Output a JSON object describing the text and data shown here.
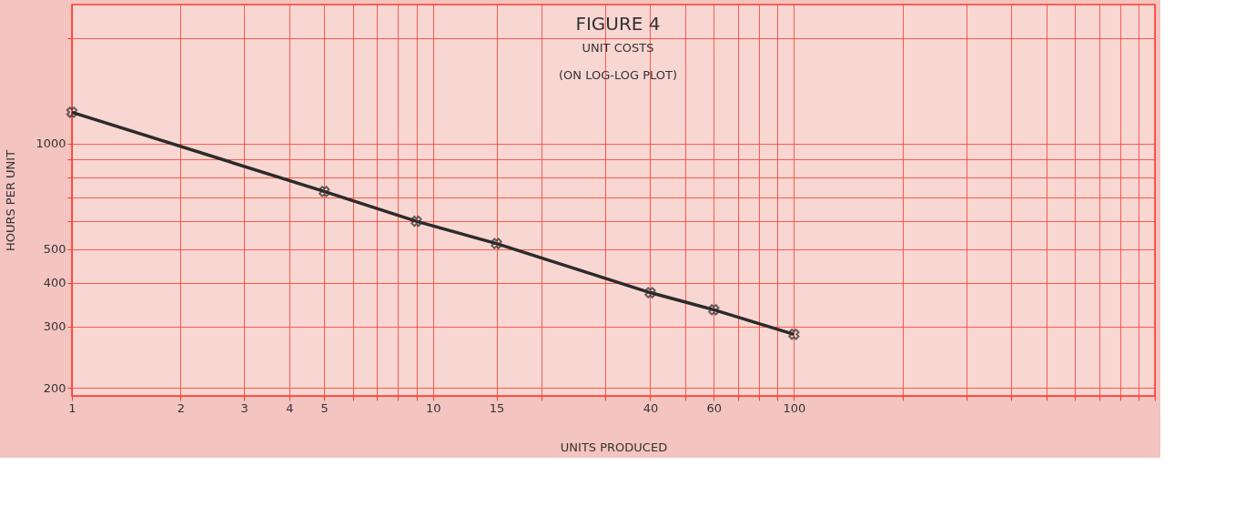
{
  "chart_data": {
    "type": "line",
    "title": "FIGURE 4",
    "subtitle": "UNIT COSTS",
    "annotations": [
      "(ON LOG-LOG PLOT)"
    ],
    "xlabel": "UNITS PRODUCED",
    "ylabel": "HOURS PER UNIT",
    "x": [
      1,
      5,
      9,
      15,
      40,
      60,
      100
    ],
    "series": [
      {
        "color": "#2b2b2b",
        "values": [
          1230,
          730,
          600,
          518,
          375,
          335,
          285
        ]
      }
    ],
    "log": "xy",
    "marker": "cross",
    "line_style": "solid",
    "grid": true,
    "xlim": [
      1,
      1000
    ],
    "ylim": [
      190,
      2500
    ],
    "xticks": [
      1,
      2,
      3,
      4,
      5,
      {
        "value": 6,
        "label": null
      },
      {
        "value": 7,
        "label": null
      },
      {
        "value": 8,
        "label": null
      },
      {
        "value": 9,
        "label": null
      },
      10,
      15,
      {
        "value": 20,
        "label": null
      },
      {
        "value": 30,
        "label": null
      },
      40,
      {
        "value": 50,
        "label": null
      },
      60,
      {
        "value": 70,
        "label": null
      },
      {
        "value": 80,
        "label": null
      },
      {
        "value": 90,
        "label": null
      },
      100,
      {
        "value": 200,
        "label": null
      },
      {
        "value": 300,
        "label": null
      },
      {
        "value": 400,
        "label": null
      },
      {
        "value": 500,
        "label": null
      },
      {
        "value": 600,
        "label": null
      },
      {
        "value": 700,
        "label": null
      },
      {
        "value": 800,
        "label": null
      },
      {
        "value": 900,
        "label": null
      },
      {
        "value": 1000,
        "label": null
      }
    ],
    "yticks": [
      200,
      300,
      400,
      500,
      {
        "value": 600,
        "label": null
      },
      {
        "value": 700,
        "label": null
      },
      {
        "value": 800,
        "label": null
      },
      {
        "value": 900,
        "label": null
      },
      1000,
      {
        "value": 2000,
        "label": null
      }
    ]
  }
}
